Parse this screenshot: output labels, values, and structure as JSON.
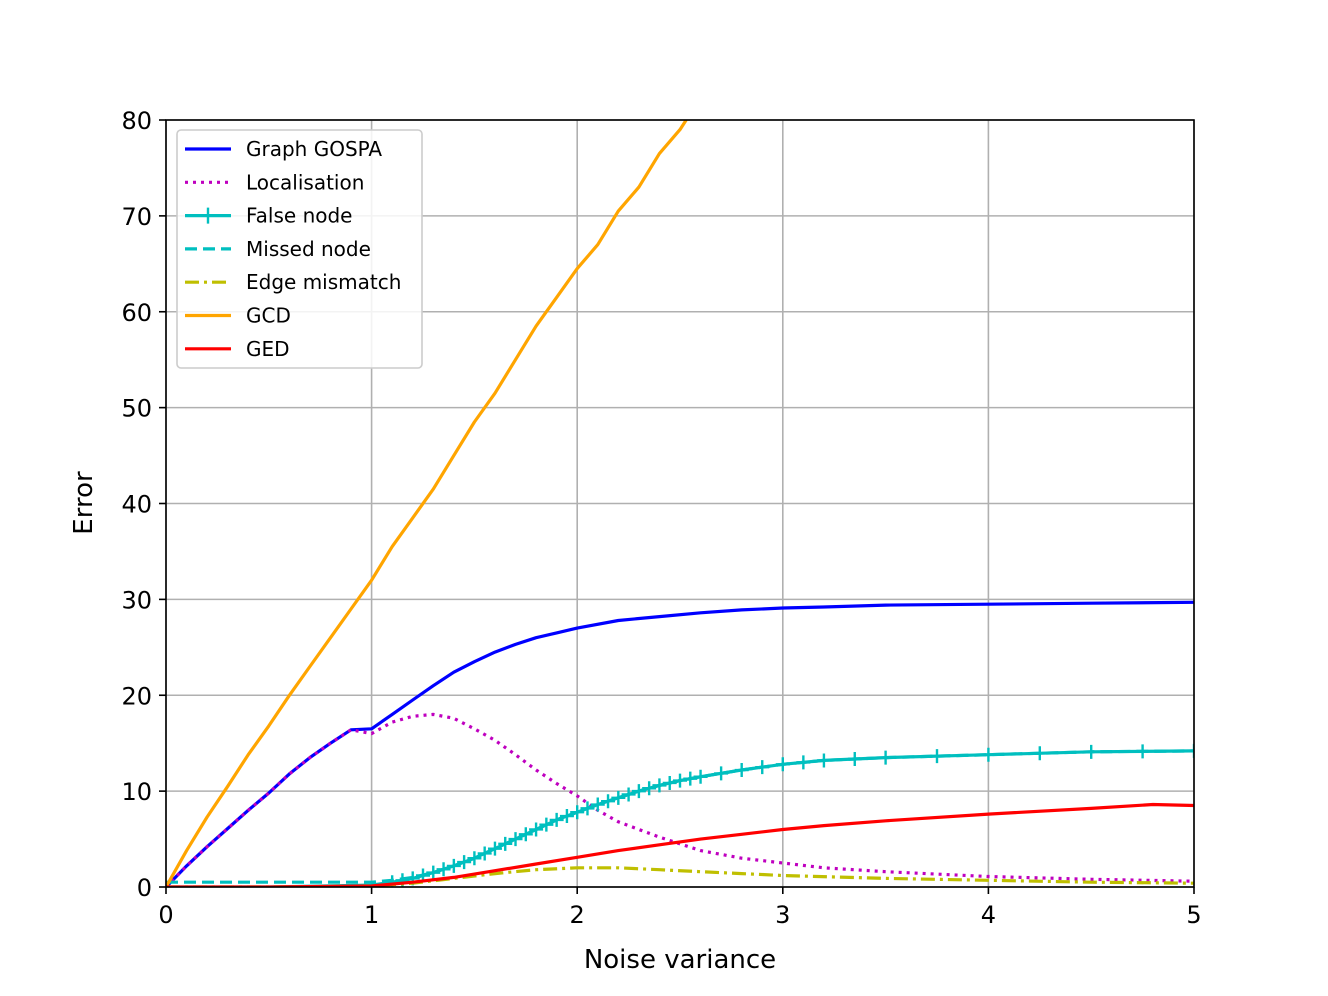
{
  "chart_data": {
    "type": "line",
    "title": "",
    "xlabel": "Noise variance",
    "ylabel": "Error",
    "xlim": [
      0,
      5
    ],
    "ylim": [
      0,
      80
    ],
    "xticks": [
      "0",
      "1",
      "2",
      "3",
      "4",
      "5"
    ],
    "yticks": [
      "0",
      "10",
      "20",
      "30",
      "40",
      "50",
      "60",
      "70",
      "80"
    ],
    "grid": true,
    "legend_position": "top-left",
    "series": [
      {
        "name": "Graph GOSPA",
        "color": "#0000ff",
        "style": "solid",
        "x": [
          0,
          0.1,
          0.2,
          0.3,
          0.4,
          0.5,
          0.6,
          0.7,
          0.8,
          0.9,
          1.0,
          1.1,
          1.2,
          1.3,
          1.4,
          1.5,
          1.6,
          1.7,
          1.8,
          1.9,
          2.0,
          2.2,
          2.4,
          2.6,
          2.8,
          3.0,
          3.2,
          3.5,
          4.0,
          4.5,
          5.0
        ],
        "y": [
          0,
          2.2,
          4.2,
          6.1,
          8.0,
          9.8,
          11.8,
          13.5,
          15.0,
          16.4,
          16.5,
          18.0,
          19.5,
          21.0,
          22.4,
          23.5,
          24.5,
          25.3,
          26.0,
          26.5,
          27.0,
          27.8,
          28.2,
          28.6,
          28.9,
          29.1,
          29.2,
          29.4,
          29.5,
          29.6,
          29.7
        ]
      },
      {
        "name": "Localisation",
        "color": "#bf00bf",
        "style": "dotted",
        "x": [
          0,
          0.1,
          0.2,
          0.3,
          0.4,
          0.5,
          0.6,
          0.7,
          0.8,
          0.9,
          1.0,
          1.1,
          1.2,
          1.3,
          1.4,
          1.5,
          1.6,
          1.7,
          1.8,
          1.9,
          2.0,
          2.1,
          2.2,
          2.4,
          2.6,
          2.8,
          3.0,
          3.2,
          3.5,
          4.0,
          4.5,
          5.0
        ],
        "y": [
          0,
          2.2,
          4.2,
          6.1,
          8.0,
          9.8,
          11.8,
          13.5,
          15.0,
          16.4,
          16.0,
          17.2,
          17.8,
          18.0,
          17.6,
          16.5,
          15.3,
          13.8,
          12.2,
          10.8,
          9.5,
          8.0,
          6.8,
          5.2,
          3.8,
          3.0,
          2.5,
          2.0,
          1.6,
          1.1,
          0.8,
          0.6
        ]
      },
      {
        "name": "False node",
        "color": "#00bfbf",
        "style": "solid-plus",
        "x": [
          0,
          0.5,
          1.0,
          1.1,
          1.2,
          1.3,
          1.4,
          1.5,
          1.6,
          1.7,
          1.8,
          1.9,
          2.0,
          2.1,
          2.2,
          2.3,
          2.4,
          2.5,
          2.6,
          2.8,
          3.0,
          3.2,
          3.5,
          4.0,
          4.5,
          5.0
        ],
        "y": [
          0,
          0,
          0.2,
          0.5,
          0.9,
          1.5,
          2.2,
          3.0,
          4.0,
          5.0,
          6.0,
          7.0,
          7.8,
          8.6,
          9.3,
          10.0,
          10.6,
          11.1,
          11.5,
          12.2,
          12.8,
          13.2,
          13.5,
          13.8,
          14.1,
          14.2
        ]
      },
      {
        "name": "Missed node",
        "color": "#00bfbf",
        "style": "dashed",
        "x": [
          0,
          0.5,
          1.0,
          1.1,
          1.2,
          1.3,
          1.4,
          1.5,
          1.6,
          1.7,
          1.8,
          1.9,
          2.0,
          2.1,
          2.2,
          2.3,
          2.4,
          2.5,
          2.6,
          2.8,
          3.0,
          3.2,
          3.5,
          4.0,
          4.5,
          5.0
        ],
        "y": [
          0.5,
          0.5,
          0.5,
          0.7,
          1.0,
          1.5,
          2.2,
          3.0,
          4.0,
          5.0,
          6.0,
          7.0,
          7.8,
          8.6,
          9.3,
          10.0,
          10.6,
          11.1,
          11.5,
          12.2,
          12.8,
          13.2,
          13.5,
          13.8,
          14.1,
          14.2
        ]
      },
      {
        "name": "Edge mismatch",
        "color": "#bfbf00",
        "style": "dashdot",
        "x": [
          0,
          0.5,
          1.0,
          1.2,
          1.4,
          1.6,
          1.8,
          2.0,
          2.2,
          2.4,
          2.6,
          2.8,
          3.0,
          3.5,
          4.0,
          4.5,
          5.0
        ],
        "y": [
          0,
          0,
          0.1,
          0.4,
          0.9,
          1.4,
          1.8,
          2.0,
          2.0,
          1.8,
          1.6,
          1.4,
          1.2,
          0.9,
          0.7,
          0.5,
          0.4
        ]
      },
      {
        "name": "GCD",
        "color": "#ffa500",
        "style": "solid",
        "x": [
          0,
          0.1,
          0.2,
          0.3,
          0.4,
          0.5,
          0.6,
          0.7,
          0.8,
          0.9,
          1.0,
          1.1,
          1.2,
          1.3,
          1.4,
          1.5,
          1.6,
          1.7,
          1.8,
          1.9,
          2.0,
          2.1,
          2.2,
          2.3,
          2.4,
          2.5,
          2.53
        ],
        "y": [
          0,
          3.8,
          7.3,
          10.5,
          13.8,
          16.8,
          20.0,
          23.0,
          26.0,
          29.0,
          32.0,
          35.5,
          38.5,
          41.5,
          45.0,
          48.5,
          51.5,
          55.0,
          58.5,
          61.5,
          64.5,
          67.0,
          70.5,
          73.0,
          76.5,
          79.0,
          80.0
        ]
      },
      {
        "name": "GED",
        "color": "#ff0000",
        "style": "solid",
        "x": [
          0,
          0.5,
          1.0,
          1.2,
          1.4,
          1.6,
          1.8,
          2.0,
          2.2,
          2.4,
          2.6,
          2.8,
          3.0,
          3.2,
          3.5,
          4.0,
          4.5,
          4.8,
          5.0
        ],
        "y": [
          0,
          0,
          0.1,
          0.5,
          1.0,
          1.7,
          2.4,
          3.1,
          3.8,
          4.4,
          5.0,
          5.5,
          6.0,
          6.4,
          6.9,
          7.6,
          8.2,
          8.6,
          8.5
        ]
      }
    ]
  }
}
